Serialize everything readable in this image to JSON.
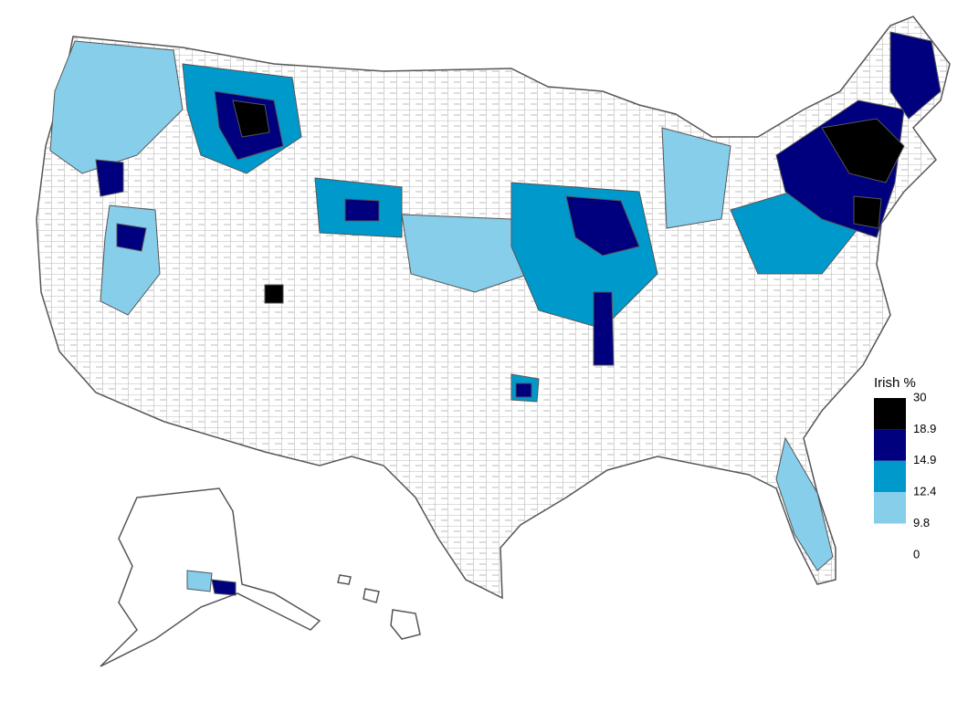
{
  "legend": {
    "title": "Irish %",
    "breaks": [
      30,
      18.9,
      14.9,
      12.4,
      9.8,
      0
    ],
    "colors": [
      "#000000",
      "#00007f",
      "#0099cc",
      "#87ceeb",
      "#ffffff"
    ]
  }
}
